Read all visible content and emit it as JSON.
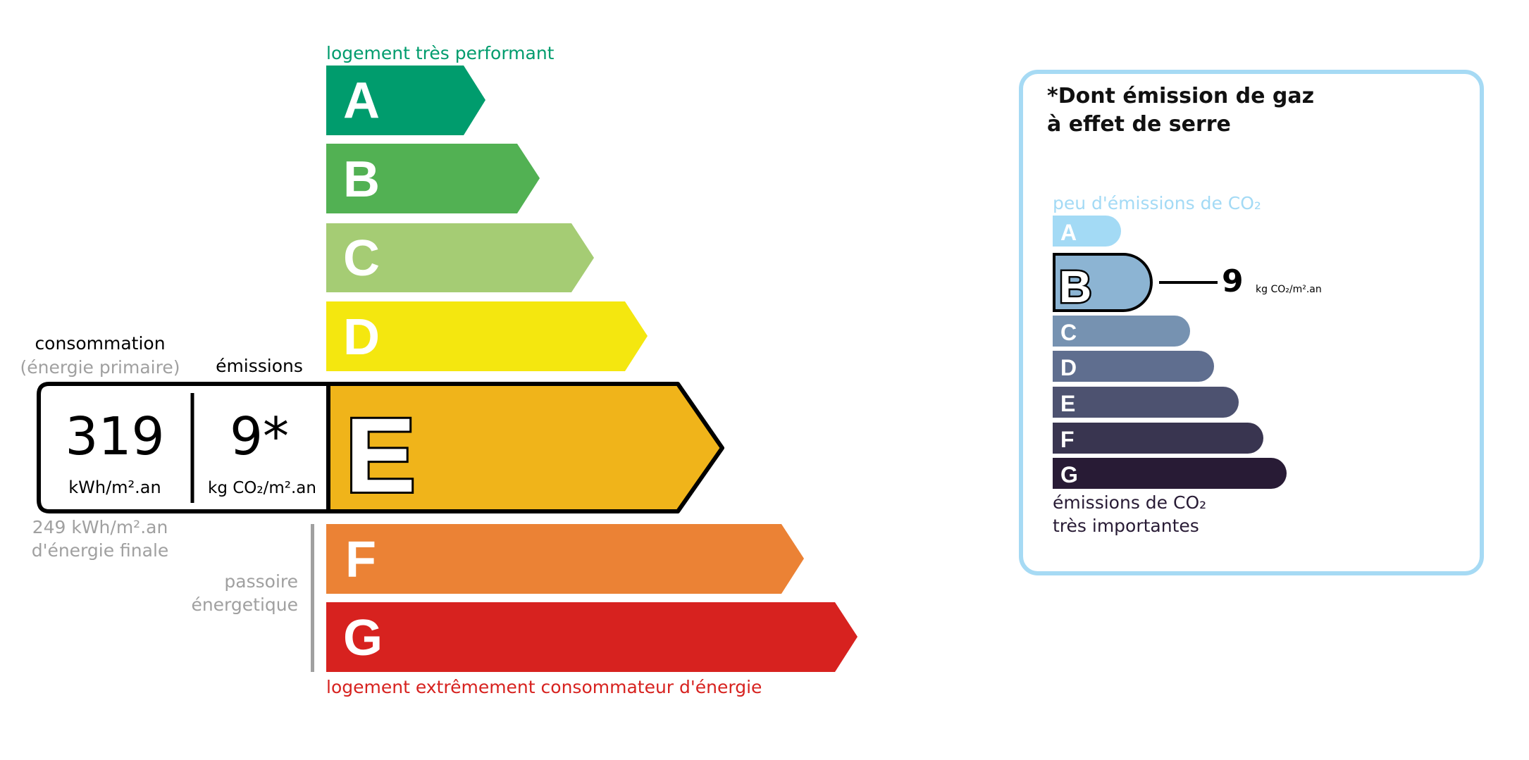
{
  "energy": {
    "top_label": "logement très performant",
    "bottom_label": "logement extrêmement consommateur d'énergie",
    "classes": [
      {
        "letter": "A",
        "color": "#009c6d"
      },
      {
        "letter": "B",
        "color": "#52b153"
      },
      {
        "letter": "C",
        "color": "#a5cc74"
      },
      {
        "letter": "D",
        "color": "#f4e70f"
      },
      {
        "letter": "E",
        "color": "#f0b41a"
      },
      {
        "letter": "F",
        "color": "#eb8235"
      },
      {
        "letter": "G",
        "color": "#d7221f"
      }
    ],
    "current_class": "E",
    "consumption_heading": "consommation",
    "consumption_sub": "(énergie primaire)",
    "emissions_heading": "émissions",
    "consumption_value": "319",
    "consumption_unit": "kWh/m².an",
    "emissions_value": "9*",
    "emissions_unit": "kg CO₂/m².an",
    "final_energy_line1": "249 kWh/m².an",
    "final_energy_line2": "d'énergie finale",
    "passoire_line1": "passoire",
    "passoire_line2": "énergetique"
  },
  "ghg": {
    "title_line1": "*Dont émission de gaz",
    "title_line2": "à effet de serre",
    "top_label": "peu d'émissions de CO₂",
    "bottom_label_line1": "émissions de CO₂",
    "bottom_label_line2": "très importantes",
    "classes": [
      {
        "letter": "A",
        "color": "#a3daf5"
      },
      {
        "letter": "B",
        "color": "#8cb4d3"
      },
      {
        "letter": "C",
        "color": "#7692b1"
      },
      {
        "letter": "D",
        "color": "#5f6e8f"
      },
      {
        "letter": "E",
        "color": "#4d5270"
      },
      {
        "letter": "F",
        "color": "#393550"
      },
      {
        "letter": "G",
        "color": "#281b35"
      }
    ],
    "current_class": "B",
    "value": "9",
    "unit": "kg CO₂/m².an",
    "border_color": "#a6daf4"
  }
}
